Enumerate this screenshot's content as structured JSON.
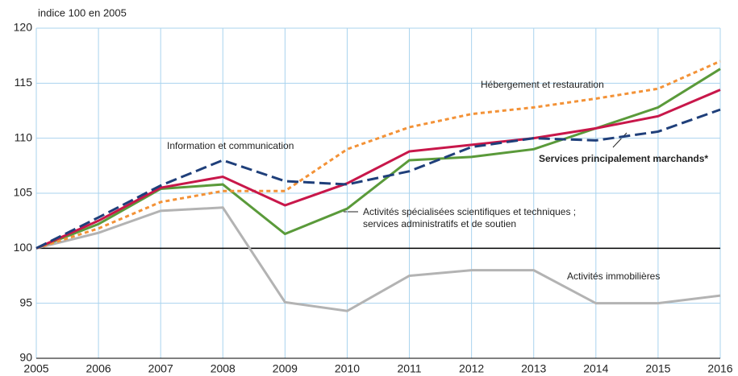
{
  "chart_data": {
    "type": "line",
    "y_label": "indice 100 en 2005",
    "x": [
      2005,
      2006,
      2007,
      2008,
      2009,
      2010,
      2011,
      2012,
      2013,
      2014,
      2015,
      2016
    ],
    "xlim": [
      2005,
      2016
    ],
    "xticks": [
      2005,
      2006,
      2007,
      2008,
      2009,
      2010,
      2011,
      2012,
      2013,
      2014,
      2015,
      2016
    ],
    "ylim": [
      90,
      120
    ],
    "yticks": [
      90,
      95,
      100,
      105,
      110,
      115,
      120
    ],
    "grid": true,
    "series": [
      {
        "name": "Activités immobilières",
        "color": "#b3b3b3",
        "dash": "solid",
        "values": [
          100,
          101.4,
          103.4,
          103.7,
          95.1,
          94.3,
          97.5,
          98,
          98,
          95,
          95,
          95.7
        ]
      },
      {
        "name": "Activités spécialisées scientifiques et techniques ; services administratifs et de soutien",
        "color": "#5a9a3a",
        "dash": "solid",
        "values": [
          100,
          102.2,
          105.4,
          105.8,
          101.3,
          103.6,
          108,
          108.3,
          109,
          110.9,
          112.8,
          116.3
        ]
      },
      {
        "name": "Hébergement et restauration",
        "color": "#f39237",
        "dash": "dotted",
        "values": [
          100,
          101.8,
          104.2,
          105.2,
          105.2,
          109,
          111,
          112.2,
          112.8,
          113.6,
          114.5,
          117
        ]
      },
      {
        "name": "Services principalement marchands*",
        "color": "#c8174a",
        "dash": "solid",
        "values": [
          100,
          102.5,
          105.5,
          106.5,
          103.9,
          105.9,
          108.8,
          109.4,
          110,
          110.9,
          112,
          114.4
        ]
      },
      {
        "name": "Information et communication",
        "color": "#1f3f7a",
        "dash": "dashed",
        "values": [
          100,
          102.8,
          105.7,
          108,
          106.1,
          105.8,
          107,
          109.2,
          110,
          109.8,
          110.6,
          112.6
        ]
      }
    ]
  }
}
